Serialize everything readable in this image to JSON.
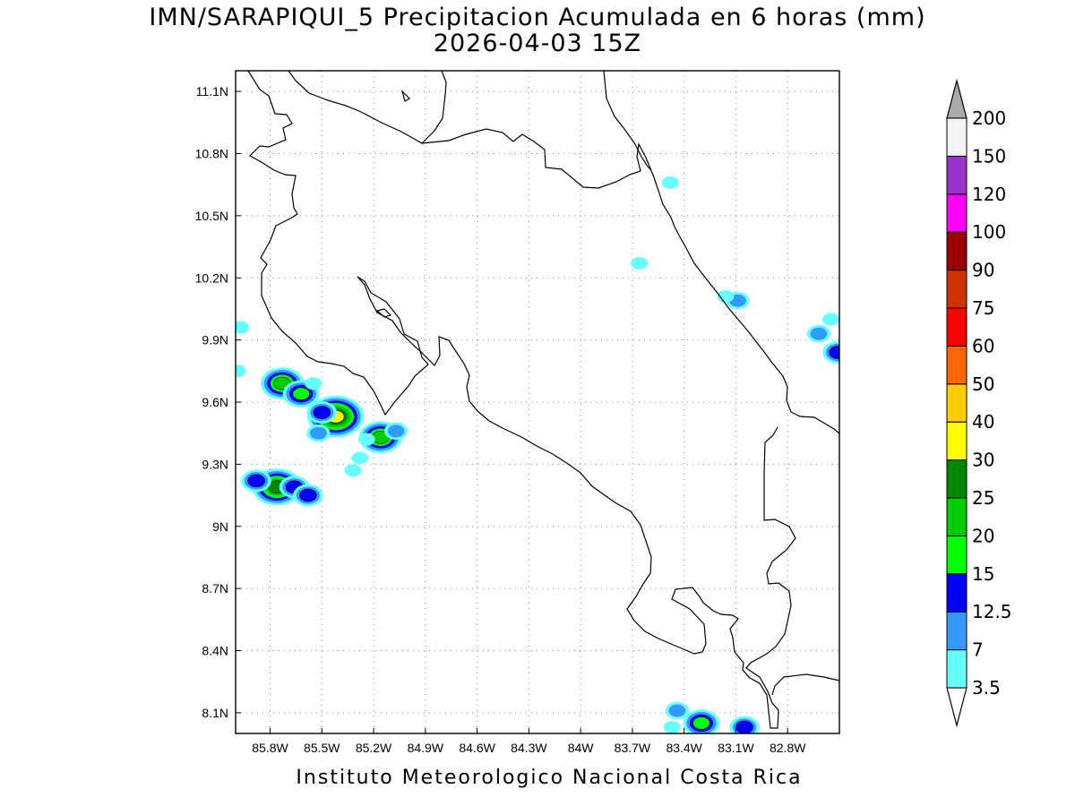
{
  "title": {
    "line1": "IMN/SARAPIQUI_5 Precipitacion Acumulada en 6 horas (mm)",
    "line2": "2026-04-03 15Z"
  },
  "footer": "Instituto Meteorologico Nacional Costa Rica",
  "axes": {
    "lon_range": [
      -86.0,
      -82.5
    ],
    "lat_range": [
      8.0,
      11.2
    ],
    "lon_ticks": [
      {
        "value": -85.8,
        "label": "85.8W"
      },
      {
        "value": -85.5,
        "label": "85.5W"
      },
      {
        "value": -85.2,
        "label": "85.2W"
      },
      {
        "value": -84.9,
        "label": "84.9W"
      },
      {
        "value": -84.6,
        "label": "84.6W"
      },
      {
        "value": -84.3,
        "label": "84.3W"
      },
      {
        "value": -84.0,
        "label": "84W"
      },
      {
        "value": -83.7,
        "label": "83.7W"
      },
      {
        "value": -83.4,
        "label": "83.4W"
      },
      {
        "value": -83.1,
        "label": "83.1W"
      },
      {
        "value": -82.8,
        "label": "82.8W"
      }
    ],
    "lat_ticks": [
      {
        "value": 11.1,
        "label": "11.1N"
      },
      {
        "value": 10.8,
        "label": "10.8N"
      },
      {
        "value": 10.5,
        "label": "10.5N"
      },
      {
        "value": 10.2,
        "label": "10.2N"
      },
      {
        "value": 9.9,
        "label": "9.9N"
      },
      {
        "value": 9.6,
        "label": "9.6N"
      },
      {
        "value": 9.3,
        "label": "9.3N"
      },
      {
        "value": 9.0,
        "label": "9N"
      },
      {
        "value": 8.7,
        "label": "8.7N"
      },
      {
        "value": 8.4,
        "label": "8.4N"
      },
      {
        "value": 8.1,
        "label": "8.1N"
      }
    ],
    "grid": "dotted"
  },
  "colorbar": {
    "levels": [
      "3.5",
      "7",
      "12.5",
      "15",
      "20",
      "25",
      "30",
      "40",
      "50",
      "60",
      "75",
      "90",
      "100",
      "120",
      "150",
      "200"
    ],
    "colors": [
      "#66ffff",
      "#3399ff",
      "#0000ff",
      "#00ff00",
      "#00cc00",
      "#008800",
      "#ffff00",
      "#ffcc00",
      "#ff6600",
      "#ff0000",
      "#cc3300",
      "#990000",
      "#ff00ff",
      "#9933cc",
      "#f4f4f4",
      "#aaaaaa"
    ]
  },
  "precip_cells": [
    {
      "lon": -85.73,
      "lat": 9.69,
      "value": 20
    },
    {
      "lon": -85.62,
      "lat": 9.64,
      "value": 15
    },
    {
      "lon": -85.42,
      "lat": 9.53,
      "value": 30
    },
    {
      "lon": -85.5,
      "lat": 9.55,
      "value": 12.5
    },
    {
      "lon": -85.55,
      "lat": 9.69,
      "value": 3.5
    },
    {
      "lon": -85.16,
      "lat": 9.43,
      "value": 20
    },
    {
      "lon": -85.07,
      "lat": 9.46,
      "value": 7
    },
    {
      "lon": -85.52,
      "lat": 9.45,
      "value": 7
    },
    {
      "lon": -85.76,
      "lat": 9.19,
      "value": 25
    },
    {
      "lon": -85.66,
      "lat": 9.19,
      "value": 12.5
    },
    {
      "lon": -85.58,
      "lat": 9.15,
      "value": 12.5
    },
    {
      "lon": -85.88,
      "lat": 9.22,
      "value": 12.5
    },
    {
      "lon": -85.97,
      "lat": 9.96,
      "value": 3.5
    },
    {
      "lon": -85.99,
      "lat": 9.75,
      "value": 3.5
    },
    {
      "lon": -85.24,
      "lat": 9.42,
      "value": 3.5
    },
    {
      "lon": -85.28,
      "lat": 9.33,
      "value": 3.5
    },
    {
      "lon": -85.32,
      "lat": 9.27,
      "value": 3.5
    },
    {
      "lon": -83.09,
      "lat": 10.09,
      "value": 7
    },
    {
      "lon": -83.16,
      "lat": 10.11,
      "value": 3.5
    },
    {
      "lon": -83.66,
      "lat": 10.27,
      "value": 3.5
    },
    {
      "lon": -83.48,
      "lat": 10.66,
      "value": 3.5
    },
    {
      "lon": -82.62,
      "lat": 9.93,
      "value": 7
    },
    {
      "lon": -82.55,
      "lat": 10.0,
      "value": 3.5
    },
    {
      "lon": -82.51,
      "lat": 9.84,
      "value": 12.5
    },
    {
      "lon": -83.3,
      "lat": 8.05,
      "value": 15
    },
    {
      "lon": -83.05,
      "lat": 8.03,
      "value": 12.5
    },
    {
      "lon": -83.44,
      "lat": 8.11,
      "value": 7
    },
    {
      "lon": -83.47,
      "lat": 8.03,
      "value": 3.5
    }
  ]
}
